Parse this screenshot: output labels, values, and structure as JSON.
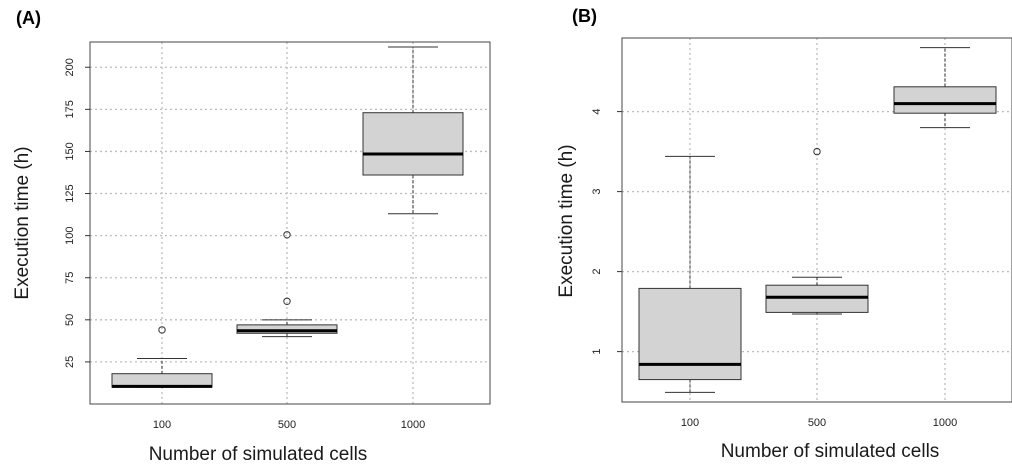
{
  "chart_data": [
    {
      "panel_label": "(A)",
      "type": "box",
      "xlabel": "Number of simulated cells",
      "ylabel": "Execution time (h)",
      "categories": [
        "100",
        "500",
        "1000"
      ],
      "yticks": [
        25,
        50,
        75,
        100,
        125,
        150,
        175,
        200
      ],
      "ylim": [
        0,
        215
      ],
      "grid": true,
      "boxes": [
        {
          "category": "100",
          "whisker_low": 10,
          "q1": 10,
          "median": 10.5,
          "q3": 18,
          "whisker_high": 27,
          "outliers": [
            44
          ]
        },
        {
          "category": "500",
          "whisker_low": 40,
          "q1": 42,
          "median": 43.5,
          "q3": 47,
          "whisker_high": 50,
          "outliers": [
            61,
            100.5
          ]
        },
        {
          "category": "1000",
          "whisker_low": 113,
          "q1": 136,
          "median": 148.5,
          "q3": 173,
          "whisker_high": 212,
          "outliers": []
        }
      ]
    },
    {
      "panel_label": "(B)",
      "type": "box",
      "xlabel": "Number of simulated cells",
      "ylabel": "Execution time (h)",
      "categories": [
        "100",
        "500",
        "1000"
      ],
      "yticks": [
        1,
        2,
        3,
        4
      ],
      "ylim": [
        0.37,
        4.92
      ],
      "grid": true,
      "boxes": [
        {
          "category": "100",
          "whisker_low": 0.49,
          "q1": 0.65,
          "median": 0.84,
          "q3": 1.79,
          "whisker_high": 3.44,
          "outliers": []
        },
        {
          "category": "500",
          "whisker_low": 1.47,
          "q1": 1.49,
          "median": 1.68,
          "q3": 1.83,
          "whisker_high": 1.93,
          "outliers": [
            3.5
          ]
        },
        {
          "category": "1000",
          "whisker_low": 3.8,
          "q1": 3.98,
          "median": 4.1,
          "q3": 4.31,
          "whisker_high": 4.8,
          "outliers": []
        }
      ]
    }
  ]
}
